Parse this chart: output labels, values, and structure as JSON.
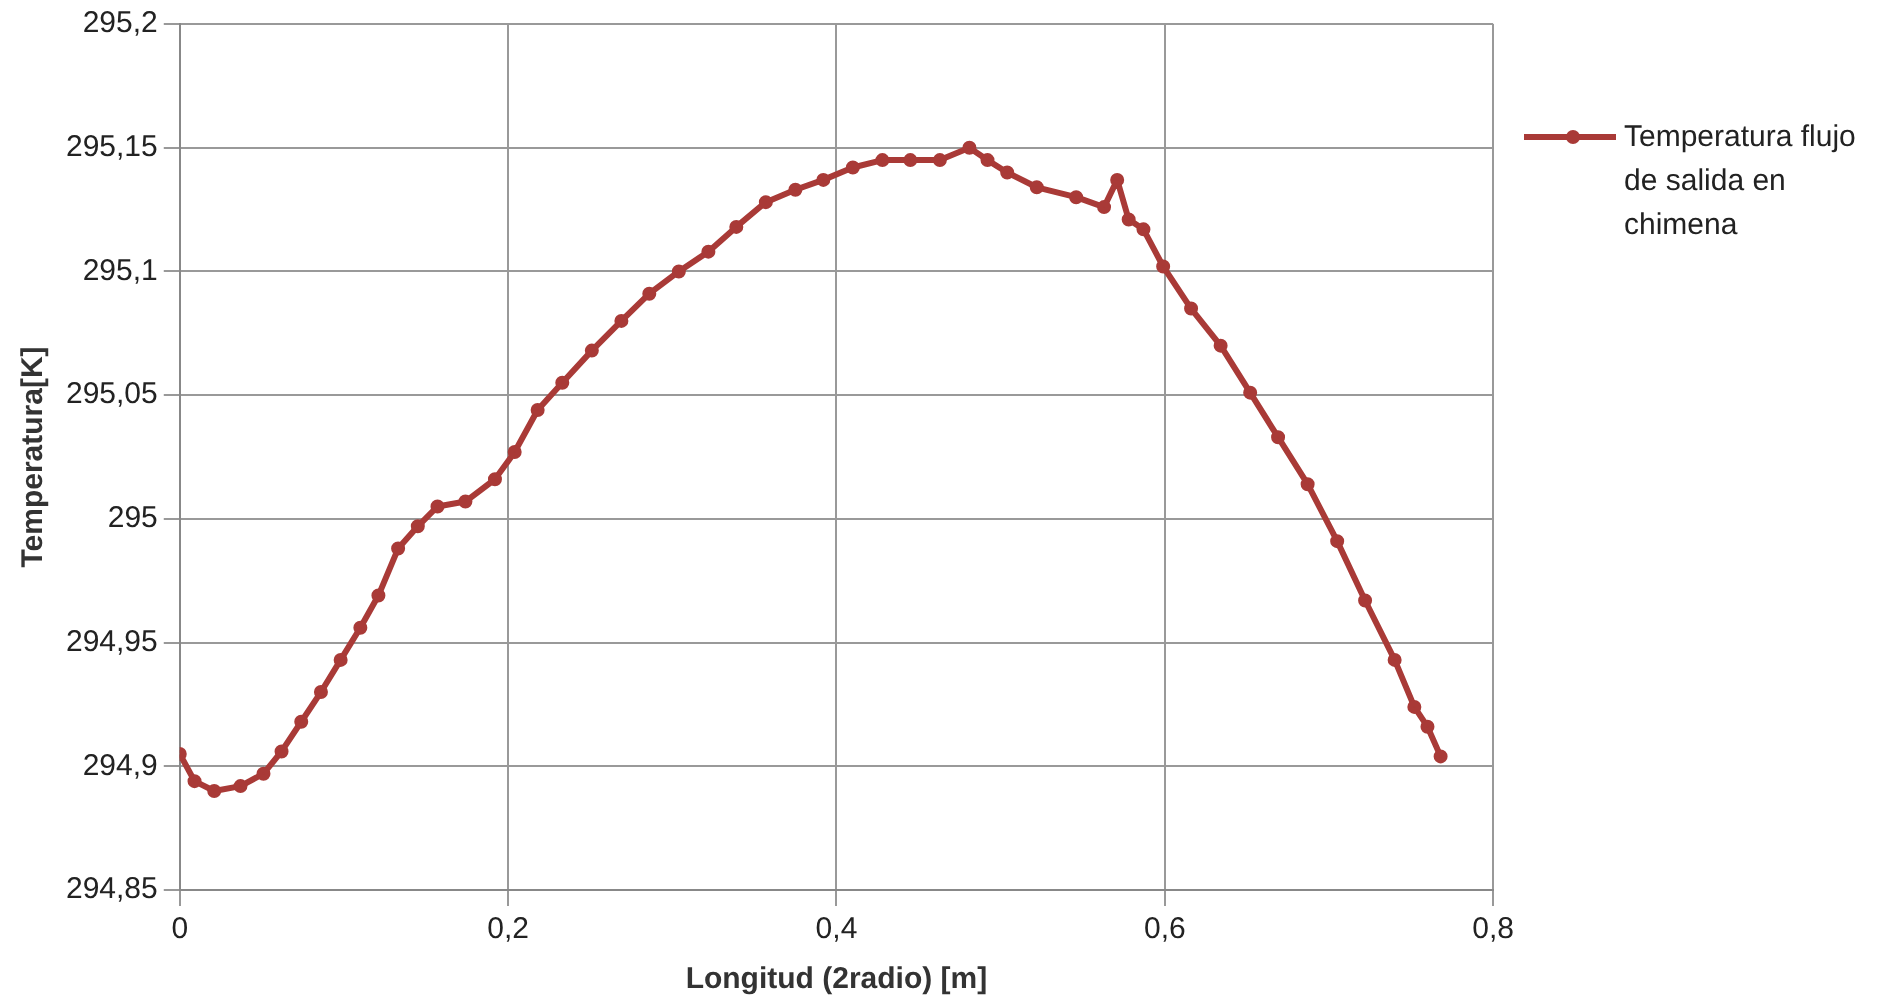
{
  "chart_data": {
    "type": "line",
    "xlabel": "Longitud (2radio) [m]",
    "ylabel": "Temperatura[K]",
    "x": [
      0,
      0.009,
      0.021,
      0.037,
      0.051,
      0.062,
      0.074,
      0.086,
      0.098,
      0.11,
      0.121,
      0.133,
      0.145,
      0.157,
      0.174,
      0.192,
      0.204,
      0.218,
      0.233,
      0.251,
      0.269,
      0.286,
      0.304,
      0.322,
      0.339,
      0.357,
      0.375,
      0.392,
      0.41,
      0.428,
      0.445,
      0.463,
      0.481,
      0.492,
      0.504,
      0.522,
      0.546,
      0.563,
      0.571,
      0.578,
      0.587,
      0.599,
      0.616,
      0.634,
      0.652,
      0.669,
      0.687,
      0.705,
      0.722,
      0.74,
      0.752,
      0.76,
      0.768
    ],
    "series": [
      {
        "name": "Temperatura flujo de salida en chimena",
        "color": "#a93a37",
        "values": [
          294.905,
          294.894,
          294.89,
          294.892,
          294.897,
          294.906,
          294.918,
          294.93,
          294.943,
          294.956,
          294.969,
          294.988,
          294.997,
          295.005,
          295.007,
          295.016,
          295.027,
          295.044,
          295.055,
          295.068,
          295.08,
          295.091,
          295.1,
          295.108,
          295.118,
          295.128,
          295.133,
          295.137,
          295.142,
          295.145,
          295.145,
          295.145,
          295.15,
          295.145,
          295.14,
          295.134,
          295.13,
          295.126,
          295.137,
          295.121,
          295.117,
          295.102,
          295.085,
          295.07,
          295.051,
          295.033,
          295.014,
          294.991,
          294.967,
          294.943,
          294.924,
          294.916,
          294.904
        ]
      }
    ],
    "xlim": [
      0,
      0.8
    ],
    "xticks": [
      0,
      {
        "value": 0.2,
        "label": "0,2"
      },
      {
        "value": 0.4,
        "label": "0,4"
      },
      {
        "value": 0.6,
        "label": "0,6"
      },
      {
        "value": 0.8,
        "label": "0,8"
      }
    ],
    "ylim": [
      294.85,
      295.2
    ],
    "yticks": [
      {
        "value": 294.85,
        "label": "294,85"
      },
      {
        "value": 294.9,
        "label": "294,9"
      },
      {
        "value": 294.95,
        "label": "294,95"
      },
      295,
      {
        "value": 295.05,
        "label": "295,05"
      },
      {
        "value": 295.1,
        "label": "295,1"
      },
      {
        "value": 295.15,
        "label": "295,15"
      },
      {
        "value": 295.2,
        "label": "295,2"
      }
    ],
    "grid": true,
    "legend": "right",
    "marker": "circle",
    "line_style": "solid"
  }
}
